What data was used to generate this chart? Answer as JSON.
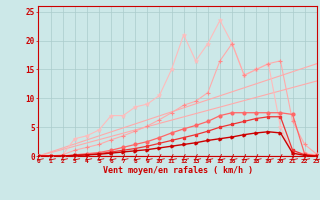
{
  "x": [
    0,
    1,
    2,
    3,
    4,
    5,
    6,
    7,
    8,
    9,
    10,
    11,
    12,
    13,
    14,
    15,
    16,
    17,
    18,
    19,
    20,
    21,
    22,
    23
  ],
  "line_spiky_light": [
    0,
    0,
    0.2,
    3.0,
    3.5,
    4.5,
    7.0,
    7.0,
    8.5,
    9.0,
    10.5,
    15.0,
    21.0,
    16.5,
    19.5,
    23.5,
    19.5,
    14.0,
    15.0,
    16.0,
    5.0,
    0.5,
    0.5,
    0.2
  ],
  "line_upper_pink": [
    0,
    0,
    0.2,
    1.0,
    1.5,
    2.0,
    2.8,
    3.5,
    4.3,
    5.2,
    6.3,
    7.5,
    8.8,
    9.5,
    11.0,
    16.5,
    19.5,
    14.0,
    15.0,
    16.0,
    16.5,
    6.0,
    2.0,
    0.3
  ],
  "line_ref1": [
    0,
    16.0
  ],
  "line_ref2": [
    0,
    13.0
  ],
  "line_med_red": [
    0,
    0,
    0,
    0.2,
    0.4,
    0.6,
    1.0,
    1.5,
    2.0,
    2.5,
    3.2,
    4.0,
    4.7,
    5.3,
    6.0,
    7.0,
    7.5,
    7.5,
    7.5,
    7.5,
    7.5,
    7.2,
    0.3,
    0.1
  ],
  "line_dark_red": [
    0,
    0,
    0,
    0.1,
    0.2,
    0.4,
    0.7,
    1.0,
    1.3,
    1.7,
    2.2,
    2.7,
    3.2,
    3.7,
    4.3,
    5.0,
    5.5,
    6.0,
    6.5,
    6.8,
    6.8,
    1.0,
    0.2,
    0
  ],
  "line_darkest": [
    0,
    0,
    0,
    0.1,
    0.2,
    0.3,
    0.5,
    0.7,
    0.9,
    1.1,
    1.4,
    1.7,
    2.0,
    2.3,
    2.7,
    3.0,
    3.3,
    3.7,
    4.0,
    4.2,
    4.0,
    0.5,
    0.1,
    0
  ],
  "bg_color": "#cce8e8",
  "grid_color": "#aacccc",
  "xlabel": "Vent moyen/en rafales ( km/h )",
  "yticks": [
    0,
    5,
    10,
    15,
    20,
    25
  ],
  "xticks": [
    0,
    1,
    2,
    3,
    4,
    5,
    6,
    7,
    8,
    9,
    10,
    11,
    12,
    13,
    14,
    15,
    16,
    17,
    18,
    19,
    20,
    21,
    22,
    23
  ],
  "ylim": [
    0,
    26
  ],
  "xlim": [
    0,
    23
  ]
}
